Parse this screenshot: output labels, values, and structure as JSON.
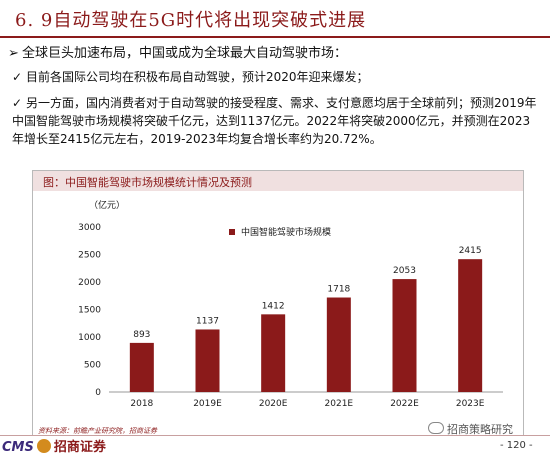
{
  "title": "6. 9自动驾驶在5G时代将出现突破式进展",
  "bullets": [
    {
      "marker": "➢",
      "text": "全球巨头加速布局，中国或成为全球最大自动驾驶市场："
    },
    {
      "marker": "✓",
      "text": "目前各国际公司均在积极布局自动驾驶，预计2020年迎来爆发；"
    },
    {
      "marker": "✓",
      "text": "另一方面，国内消费者对于自动驾驶的接受程度、需求、支付意愿均居于全球前列；预测2019年中国智能驾驶市场规模将突破千亿元，达到1137亿元。2022年将突破2000亿元，并预测在2023年增长至2415亿元左右，2019-2023年均复合增长率约为20.72%。"
    }
  ],
  "chart_header": "图：中国智能驾驶市场规模统计情况及预测",
  "chart_data": {
    "type": "bar",
    "unit_label": "（亿元）",
    "legend": "中国智能驾驶市场规模",
    "categories": [
      "2018",
      "2019E",
      "2020E",
      "2021E",
      "2022E",
      "2023E"
    ],
    "values": [
      893,
      1137,
      1412,
      1718,
      2053,
      2415
    ],
    "ylim": [
      0,
      3000
    ],
    "yticks": [
      0,
      500,
      1000,
      1500,
      2000,
      2500,
      3000
    ],
    "bar_color": "#8b1a1a",
    "grid": false
  },
  "source": "资料来源：前瞻产业研究院，招商证券",
  "logo": {
    "cms": "CMS",
    "name": "招商证券"
  },
  "wechat": "招商策略研究",
  "page_number": "- 120 -",
  "colors": {
    "accent": "#8b1a1a",
    "header_bg": "#f0e0e0"
  }
}
